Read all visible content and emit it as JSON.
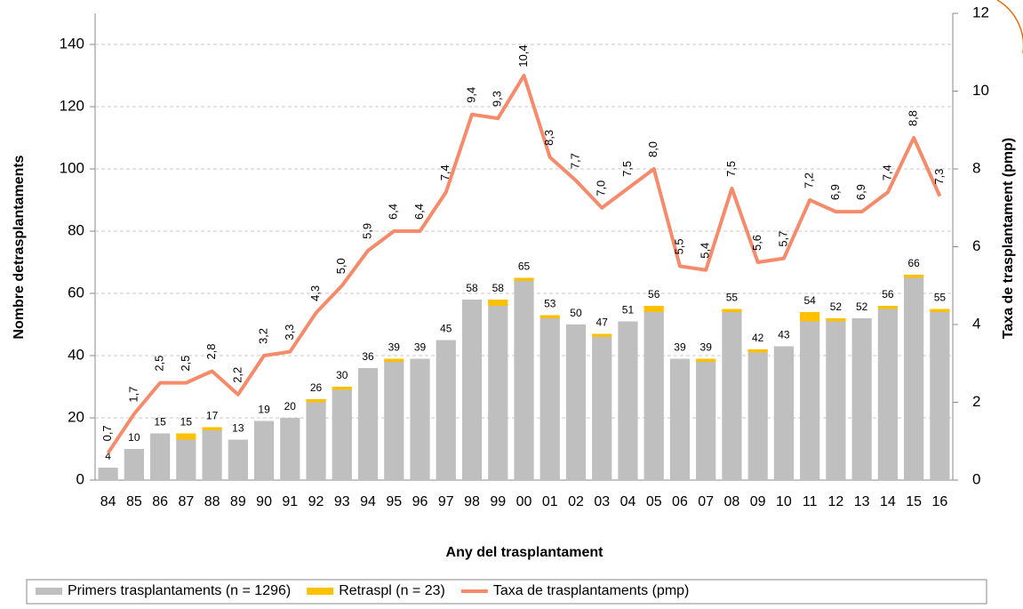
{
  "chart_data": {
    "type": "bar-line",
    "x_label": "Any del trasplantament",
    "y_label": "Nombre detrasplantaments",
    "y2_label": "Taxa de trasplantament (pmp)",
    "categories": [
      "84",
      "85",
      "86",
      "87",
      "88",
      "89",
      "90",
      "91",
      "92",
      "93",
      "94",
      "95",
      "96",
      "97",
      "98",
      "99",
      "00",
      "01",
      "02",
      "03",
      "04",
      "05",
      "06",
      "07",
      "08",
      "09",
      "10",
      "11",
      "12",
      "13",
      "14",
      "15",
      "16"
    ],
    "series": [
      {
        "name": "Primers trasplantaments (n = 1296)",
        "type": "bar",
        "color": "#bfbfbf",
        "values": [
          4,
          10,
          15,
          13,
          16,
          13,
          19,
          20,
          25,
          29,
          36,
          38,
          39,
          45,
          58,
          56,
          64,
          52,
          50,
          46,
          51,
          54,
          39,
          38,
          54,
          41,
          43,
          51,
          51,
          52,
          55,
          65,
          54
        ]
      },
      {
        "name": "Retraspl (n = 23)",
        "type": "bar",
        "color": "#ffc000",
        "values": [
          0,
          0,
          0,
          2,
          1,
          0,
          0,
          0,
          1,
          1,
          0,
          1,
          0,
          0,
          0,
          2,
          1,
          1,
          0,
          1,
          0,
          2,
          0,
          1,
          1,
          1,
          0,
          3,
          1,
          0,
          1,
          1,
          1
        ]
      },
      {
        "name": "Taxa de trasplantaments (pmp)",
        "type": "line",
        "axis": "y2",
        "color": "#f58b6b",
        "values": [
          0.7,
          1.7,
          2.5,
          2.5,
          2.8,
          2.2,
          3.2,
          3.3,
          4.3,
          5.0,
          5.9,
          6.4,
          6.4,
          7.4,
          9.4,
          9.3,
          10.4,
          8.3,
          7.7,
          7.0,
          7.5,
          8.0,
          5.5,
          5.4,
          7.5,
          5.6,
          5.7,
          7.2,
          6.9,
          6.9,
          7.4,
          8.8,
          7.3
        ],
        "value_labels": [
          "0,7",
          "1,7",
          "2,5",
          "2,5",
          "2,8",
          "2,2",
          "3,2",
          "3,3",
          "4,3",
          "5,0",
          "5,9",
          "6,4",
          "6,4",
          "7,4",
          "9,4",
          "9,3",
          "10,4",
          "8,3",
          "7,7",
          "7,0",
          "7,5",
          "8,0",
          "5,5",
          "5,4",
          "7,5",
          "5,6",
          "5,7",
          "7,2",
          "6,9",
          "6,9",
          "7,4",
          "8,8",
          "7,3"
        ]
      }
    ],
    "total_labels": [
      4,
      10,
      15,
      15,
      17,
      13,
      19,
      20,
      26,
      30,
      36,
      39,
      39,
      45,
      58,
      58,
      65,
      53,
      50,
      47,
      51,
      56,
      39,
      39,
      55,
      42,
      43,
      54,
      52,
      52,
      56,
      66,
      55
    ],
    "ylim": [
      0,
      150
    ],
    "yticks": [
      0,
      20,
      40,
      60,
      80,
      100,
      120,
      140
    ],
    "y2lim": [
      0,
      12
    ],
    "y2ticks": [
      0,
      2,
      4,
      6,
      8,
      10,
      12
    ],
    "grid": true
  }
}
